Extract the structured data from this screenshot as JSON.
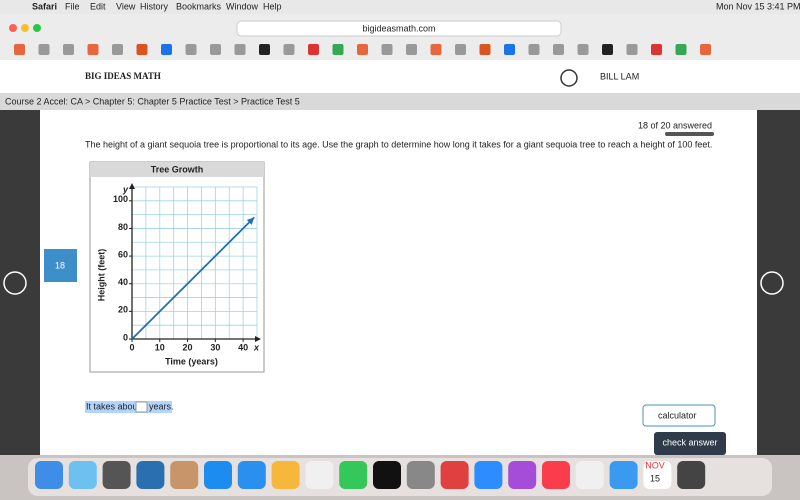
{
  "menubar": {
    "app": "Safari",
    "menus": [
      "File",
      "Edit",
      "View",
      "History",
      "Bookmarks",
      "Window",
      "Help"
    ],
    "clock": "Mon Nov 15  3:41 PM"
  },
  "browser": {
    "url": "bigideasmath.com"
  },
  "header": {
    "logo": "BIG IDEAS MATH",
    "user": "BILL LAM"
  },
  "breadcrumb": "Course 2 Accel: CA > Chapter 5: Chapter 5 Practice Test > Practice Test 5",
  "question": {
    "number": "18",
    "progress": "18 of 20 answered",
    "text": "The height of a giant sequoia tree is proportional to its age. Use the graph to determine how long it takes for a giant sequoia tree to reach a height of 100 feet.",
    "answer_before": "It takes about",
    "answer_after": "years."
  },
  "buttons": {
    "calculator": "calculator",
    "check": "check answer"
  },
  "dock": {
    "month": "NOV",
    "day": "15"
  },
  "chart_data": {
    "type": "line",
    "title": "Tree Growth",
    "x_label": "Time (years)",
    "y_label": "Height (feet)",
    "x_axis_name": "x",
    "y_axis_name": "y",
    "x": [
      0,
      44
    ],
    "values": [
      0,
      88
    ],
    "color": "#1f6fb2",
    "xlim": [
      0,
      45
    ],
    "ylim": [
      0,
      110
    ],
    "xticks": [
      0,
      10,
      20,
      30,
      40
    ],
    "yticks": [
      0,
      20,
      40,
      60,
      80,
      100
    ],
    "grid": true,
    "xgrid_step": 5,
    "ygrid_step": 10
  }
}
